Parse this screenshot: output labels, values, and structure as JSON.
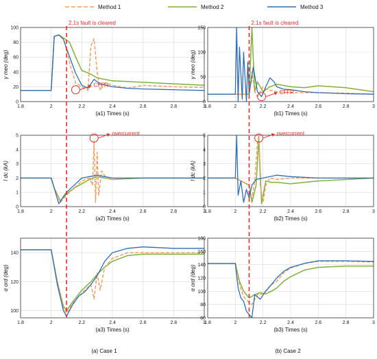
{
  "legend": [
    {
      "name": "Method 1",
      "color": "#f0a060",
      "dash": true
    },
    {
      "name": "Method 2",
      "color": "#7fb13a",
      "dash": false
    },
    {
      "name": "Method 3",
      "color": "#2e6db4",
      "dash": false
    }
  ],
  "annotation_color": "#e0302a",
  "captions": {
    "case1": "(a) Case 1",
    "case2": "(b) Case 2"
  },
  "chart_data": [
    {
      "id": "a1",
      "type": "line",
      "xlabel": "(a1) Times (s)",
      "ylabel": "γ meo (deg)",
      "xlim": [
        1.8,
        3
      ],
      "ylim": [
        0,
        100
      ],
      "xticks": [
        "1.8",
        "2",
        "2.2",
        "2.4",
        "2.6",
        "2.8",
        "3"
      ],
      "yticks": [
        "0",
        "20",
        "40",
        "60",
        "80",
        "100"
      ],
      "fault_line_x": 2.1,
      "annotations": [
        {
          "text": "2.1s fault is cleared",
          "x": 2.1,
          "y": 100
        },
        {
          "text": "CFFR",
          "x": 2.16,
          "y": 16
        }
      ],
      "series": [
        {
          "name": "Method 1",
          "x": [
            1.8,
            2.0,
            2.02,
            2.05,
            2.08,
            2.1,
            2.13,
            2.16,
            2.2,
            2.24,
            2.26,
            2.28,
            2.3,
            2.32,
            2.35,
            2.4,
            2.5,
            2.6,
            2.8,
            3.0
          ],
          "y": [
            15,
            15,
            88,
            90,
            85,
            70,
            45,
            25,
            20,
            15,
            75,
            85,
            40,
            15,
            25,
            22,
            18,
            22,
            20,
            19
          ]
        },
        {
          "name": "Method 2",
          "x": [
            1.8,
            2.0,
            2.02,
            2.05,
            2.08,
            2.12,
            2.16,
            2.2,
            2.25,
            2.3,
            2.4,
            2.5,
            2.6,
            2.8,
            3.0
          ],
          "y": [
            15,
            15,
            88,
            90,
            86,
            80,
            60,
            42,
            38,
            32,
            28,
            27,
            26,
            24,
            22
          ]
        },
        {
          "name": "Method 3",
          "x": [
            1.8,
            2.0,
            2.02,
            2.05,
            2.08,
            2.1,
            2.13,
            2.16,
            2.2,
            2.24,
            2.28,
            2.32,
            2.4,
            2.5,
            2.6,
            2.8,
            3.0
          ],
          "y": [
            15,
            15,
            88,
            90,
            84,
            72,
            55,
            38,
            22,
            18,
            30,
            24,
            20,
            18,
            17,
            16,
            15
          ]
        }
      ]
    },
    {
      "id": "b1",
      "type": "line",
      "xlabel": "(b1) Times (s)",
      "ylabel": "γ meo (deg)",
      "xlim": [
        1.8,
        3
      ],
      "ylim": [
        0,
        150
      ],
      "xticks": [
        "1.8",
        "2",
        "2.2",
        "2.4",
        "2.6",
        "2.8",
        "3"
      ],
      "yticks": [
        "0",
        "50",
        "100",
        "150"
      ],
      "fault_line_x": 2.1,
      "annotations": [
        {
          "text": "2.1s fault is cleared",
          "x": 2.1,
          "y": 150
        },
        {
          "text": "CFFR",
          "x": 2.19,
          "y": 10
        }
      ],
      "series": [
        {
          "name": "Method 1",
          "x": [
            1.8,
            2.0,
            2.1,
            2.12,
            2.14,
            2.16,
            2.18,
            2.2,
            2.23,
            2.27,
            2.3,
            2.4,
            2.6,
            2.8,
            3.0
          ],
          "y": [
            15,
            15,
            15,
            60,
            20,
            10,
            20,
            30,
            24,
            22,
            20,
            18,
            18,
            17,
            15
          ]
        },
        {
          "name": "Method 2",
          "x": [
            1.8,
            2.0,
            2.1,
            2.12,
            2.14,
            2.16,
            2.18,
            2.2,
            2.25,
            2.3,
            2.4,
            2.5,
            2.6,
            2.8,
            3.0
          ],
          "y": [
            15,
            15,
            15,
            150,
            20,
            40,
            30,
            20,
            30,
            35,
            30,
            28,
            32,
            28,
            20
          ]
        },
        {
          "name": "Method 3",
          "x": [
            1.8,
            2.0,
            2.01,
            2.02,
            2.03,
            2.05,
            2.06,
            2.08,
            2.09,
            2.1,
            2.13,
            2.16,
            2.19,
            2.22,
            2.25,
            2.28,
            2.3,
            2.35,
            2.4,
            2.5,
            2.6,
            2.8,
            3.0
          ],
          "y": [
            15,
            15,
            150,
            0,
            110,
            5,
            100,
            0,
            80,
            15,
            70,
            20,
            10,
            30,
            48,
            40,
            30,
            25,
            24,
            20,
            18,
            16,
            15
          ]
        }
      ]
    },
    {
      "id": "a2",
      "type": "line",
      "xlabel": "(a2) Times (s)",
      "ylabel": "I dc (kA)",
      "xlim": [
        1.8,
        3
      ],
      "ylim": [
        0,
        5
      ],
      "xticks": [
        "1.8",
        "2",
        "2.2",
        "2.4",
        "2.6",
        "2.8",
        "3"
      ],
      "yticks": [
        "0",
        "1",
        "2",
        "3",
        "4",
        "5"
      ],
      "fault_line_x": 2.1,
      "annotations": [
        {
          "text": "overcurrent",
          "x": 2.28,
          "y": 4.8
        }
      ],
      "series": [
        {
          "name": "Method 1",
          "x": [
            1.8,
            2.0,
            2.02,
            2.06,
            2.1,
            2.15,
            2.2,
            2.25,
            2.27,
            2.28,
            2.29,
            2.3,
            2.31,
            2.33,
            2.36,
            2.4,
            2.5,
            2.6,
            2.8,
            3.0
          ],
          "y": [
            2,
            2,
            1.3,
            0.3,
            0.8,
            1.3,
            1.8,
            2.0,
            1.5,
            4.6,
            0.3,
            3.8,
            0.8,
            2.5,
            2.0,
            1.9,
            2.0,
            2.0,
            2.0,
            2.0
          ]
        },
        {
          "name": "Method 2",
          "x": [
            1.8,
            2.0,
            2.02,
            2.06,
            2.1,
            2.15,
            2.2,
            2.25,
            2.3,
            2.35,
            2.4,
            2.5,
            2.6,
            2.8,
            3.0
          ],
          "y": [
            2,
            2,
            1.3,
            0.4,
            0.9,
            1.3,
            1.6,
            1.9,
            2.1,
            2.0,
            1.9,
            1.95,
            2.0,
            2.0,
            2.0
          ]
        },
        {
          "name": "Method 3",
          "x": [
            1.8,
            2.0,
            2.02,
            2.05,
            2.08,
            2.1,
            2.15,
            2.2,
            2.25,
            2.3,
            2.35,
            2.4,
            2.5,
            2.6,
            2.8,
            3.0
          ],
          "y": [
            2,
            2,
            1.3,
            0.2,
            0.7,
            1.0,
            1.5,
            2.0,
            2.1,
            2.2,
            2.1,
            2.0,
            2.0,
            2.0,
            2.0,
            2.0
          ]
        }
      ]
    },
    {
      "id": "b2",
      "type": "line",
      "xlabel": "(b2) Times (s)",
      "ylabel": "I dc (kA)",
      "xlim": [
        1.8,
        3
      ],
      "ylim": [
        0,
        5
      ],
      "xticks": [
        "1.8",
        "2",
        "2.2",
        "2.4",
        "2.6",
        "2.8",
        "3"
      ],
      "yticks": [
        "0",
        "1",
        "2",
        "3",
        "4",
        "5"
      ],
      "fault_line_x": 2.1,
      "annotations": [
        {
          "text": "overcurrent",
          "x": 2.17,
          "y": 4.8
        }
      ],
      "series": [
        {
          "name": "Method 1",
          "x": [
            1.8,
            2.0,
            2.1,
            2.12,
            2.14,
            2.16,
            2.17,
            2.18,
            2.2,
            2.22,
            2.25,
            2.3,
            2.4,
            2.6,
            2.8,
            3.0
          ],
          "y": [
            2,
            2,
            1.5,
            0.5,
            1.8,
            4.5,
            5.0,
            1.5,
            0.3,
            1.5,
            2.0,
            1.9,
            2.0,
            2.0,
            2.0,
            2.0
          ]
        },
        {
          "name": "Method 2",
          "x": [
            1.8,
            2.0,
            2.1,
            2.12,
            2.15,
            2.17,
            2.19,
            2.22,
            2.26,
            2.3,
            2.4,
            2.5,
            2.6,
            2.8,
            3.0
          ],
          "y": [
            2,
            2,
            1.5,
            0.3,
            1.5,
            4.8,
            0.2,
            1.8,
            1.7,
            1.7,
            1.6,
            1.7,
            1.8,
            1.9,
            2.0
          ]
        },
        {
          "name": "Method 3",
          "x": [
            1.8,
            2.0,
            2.01,
            2.02,
            2.04,
            2.06,
            2.08,
            2.1,
            2.12,
            2.15,
            2.2,
            2.25,
            2.3,
            2.4,
            2.6,
            2.8,
            3.0
          ],
          "y": [
            2,
            2,
            5.0,
            0.8,
            1.8,
            0.3,
            1.2,
            0.6,
            1.5,
            1.9,
            2.0,
            2.1,
            2.2,
            2.1,
            2.0,
            2.0,
            2.0
          ]
        }
      ]
    },
    {
      "id": "a3",
      "type": "line",
      "xlabel": "(a3) Times (s)",
      "ylabel": "α ord (deg)",
      "xlim": [
        1.8,
        3
      ],
      "ylim": [
        95,
        150
      ],
      "xticks": [
        "1.8",
        "2",
        "2.2",
        "2.4",
        "2.6",
        "2.8",
        "3"
      ],
      "yticks": [
        "100",
        "120",
        "140"
      ],
      "fault_line_x": 2.1,
      "annotations": [],
      "series": [
        {
          "name": "Method 1",
          "x": [
            1.8,
            2.0,
            2.04,
            2.08,
            2.1,
            2.14,
            2.2,
            2.26,
            2.28,
            2.3,
            2.32,
            2.35,
            2.4,
            2.5,
            2.6,
            2.8,
            3.0
          ],
          "y": [
            142,
            142,
            120,
            102,
            98,
            105,
            112,
            118,
            108,
            126,
            114,
            130,
            136,
            140,
            140,
            140,
            140
          ]
        },
        {
          "name": "Method 2",
          "x": [
            1.8,
            2.0,
            2.04,
            2.08,
            2.1,
            2.14,
            2.2,
            2.26,
            2.3,
            2.35,
            2.4,
            2.5,
            2.6,
            2.8,
            3.0
          ],
          "y": [
            142,
            142,
            120,
            103,
            100,
            106,
            114,
            120,
            125,
            130,
            134,
            138,
            139,
            139,
            139
          ]
        },
        {
          "name": "Method 3",
          "x": [
            1.8,
            2.0,
            2.04,
            2.08,
            2.1,
            2.14,
            2.18,
            2.22,
            2.26,
            2.3,
            2.35,
            2.4,
            2.5,
            2.6,
            2.8,
            3.0
          ],
          "y": [
            142,
            142,
            118,
            100,
            96,
            104,
            110,
            113,
            118,
            124,
            134,
            140,
            143,
            144,
            143,
            143
          ]
        }
      ]
    },
    {
      "id": "b3",
      "type": "line",
      "xlabel": "(b3) Times (s)",
      "ylabel": "α ord (deg)",
      "xlim": [
        1.8,
        3
      ],
      "ylim": [
        60,
        180
      ],
      "xticks": [
        "1.8",
        "2",
        "2.2",
        "2.4",
        "2.6",
        "2.8",
        "3"
      ],
      "yticks": [
        "60",
        "80",
        "100",
        "120",
        "140",
        "160",
        "180"
      ],
      "fault_line_x": 2.1,
      "annotations": [],
      "series": [
        {
          "name": "Method 1",
          "x": [
            1.8,
            2.0,
            2.03,
            2.06,
            2.09,
            2.12,
            2.16,
            2.2,
            2.26,
            2.3,
            2.35,
            2.4,
            2.5,
            2.6,
            2.8,
            3.0
          ],
          "y": [
            142,
            142,
            110,
            92,
            85,
            80,
            95,
            96,
            110,
            115,
            128,
            135,
            142,
            145,
            145,
            144
          ]
        },
        {
          "name": "Method 2",
          "x": [
            1.8,
            2.0,
            2.03,
            2.06,
            2.1,
            2.14,
            2.18,
            2.22,
            2.26,
            2.3,
            2.35,
            2.4,
            2.5,
            2.6,
            2.8,
            3.0
          ],
          "y": [
            142,
            142,
            115,
            100,
            90,
            95,
            98,
            96,
            100,
            105,
            115,
            122,
            132,
            136,
            138,
            138
          ]
        },
        {
          "name": "Method 3",
          "x": [
            1.8,
            2.0,
            2.02,
            2.04,
            2.06,
            2.08,
            2.1,
            2.12,
            2.14,
            2.18,
            2.22,
            2.26,
            2.3,
            2.35,
            2.4,
            2.5,
            2.6,
            2.8,
            3.0
          ],
          "y": [
            142,
            142,
            105,
            90,
            85,
            70,
            65,
            60,
            95,
            88,
            100,
            110,
            120,
            130,
            136,
            142,
            146,
            146,
            145
          ]
        }
      ]
    }
  ]
}
